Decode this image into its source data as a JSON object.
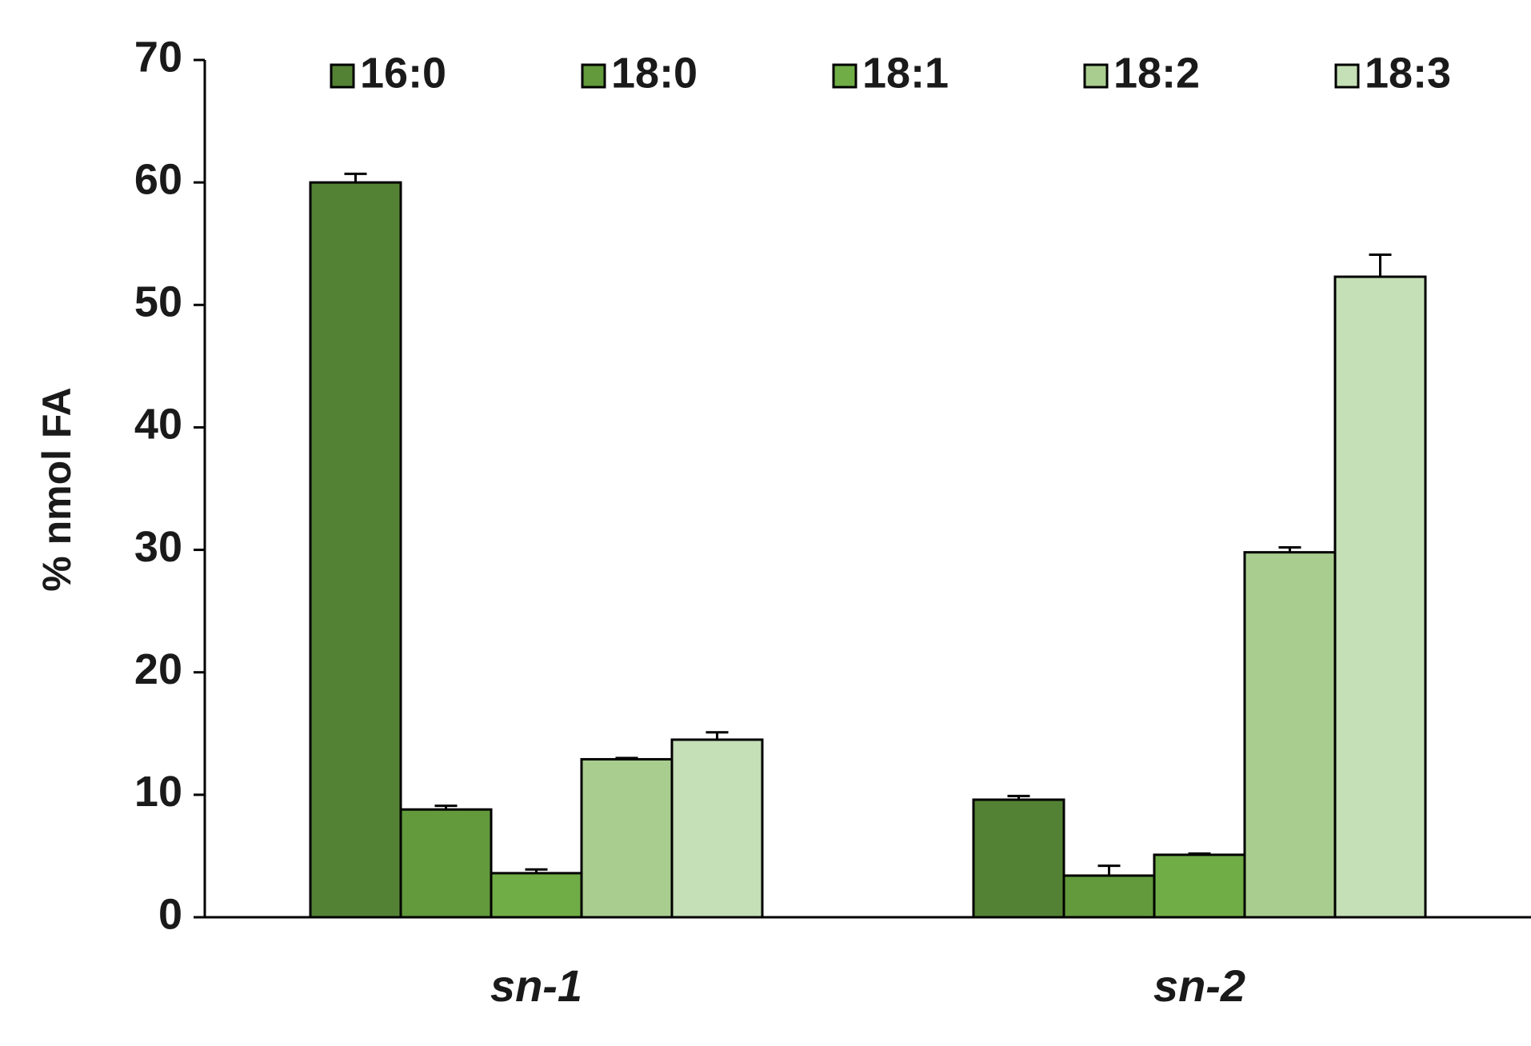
{
  "chart_data": {
    "type": "bar",
    "y_label": "% nmol FA",
    "categories": [
      "sn-1",
      "sn-2"
    ],
    "series": [
      {
        "name": "16:0",
        "color": "#548235",
        "values": [
          60.0,
          9.6
        ],
        "errors": [
          0.7,
          0.3
        ]
      },
      {
        "name": "18:0",
        "color": "#629a3c",
        "values": [
          8.8,
          3.4
        ],
        "errors": [
          0.3,
          0.8
        ]
      },
      {
        "name": "18:1",
        "color": "#70ad47",
        "values": [
          3.6,
          5.1
        ],
        "errors": [
          0.3,
          0.1
        ]
      },
      {
        "name": "18:2",
        "color": "#a9cd8f",
        "values": [
          12.9,
          29.8
        ],
        "errors": [
          0.1,
          0.4
        ]
      },
      {
        "name": "18:3",
        "color": "#c5dfb6",
        "values": [
          14.5,
          52.3
        ],
        "errors": [
          0.6,
          1.8
        ]
      }
    ],
    "ylim": [
      0,
      70
    ],
    "yticks": [
      0,
      10,
      20,
      30,
      40,
      50,
      60,
      70
    ],
    "grid": false,
    "legend": "top"
  }
}
